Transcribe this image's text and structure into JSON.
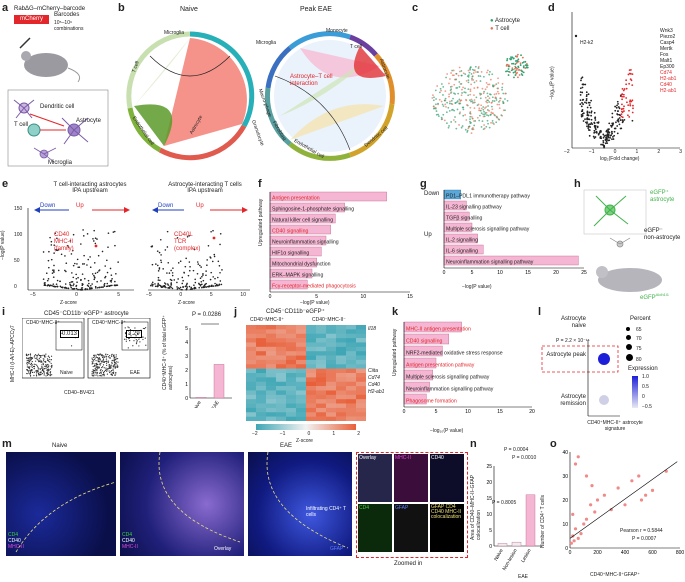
{
  "panels": {
    "a": {
      "label": "a",
      "construct": "RabΔG–mCherry–barcode",
      "mcherry": "mCherry",
      "barcodes": "Barcodes",
      "combos": "10⁵–10⁶",
      "combos2": "combinations",
      "cells": [
        "Dendritic cell",
        "T cell",
        "Astrocyte",
        "Microglia"
      ]
    },
    "b": {
      "label": "b",
      "naive": "Naive",
      "peak": "Peak EAE",
      "naive_segments": [
        "Microglia",
        "T cell",
        "Endothelial cell",
        "Astrocyte"
      ],
      "peak_segments": [
        "Microglia",
        "Monocyte",
        "T cell",
        "Astrocyte",
        "Dendritic cell",
        "Endothelial cell",
        "Fibroblast",
        "Macro-phage",
        "Granulocyte"
      ],
      "interaction": "Astrocyte–T cell interaction"
    },
    "c": {
      "label": "c",
      "legend": [
        "Astrocyte",
        "T cell"
      ]
    },
    "d": {
      "label": "d",
      "xlabel": "log₂(Fold change)",
      "ylabel": "−log₁₀(P value)",
      "genes_black": [
        "H2-k2",
        "Wnk3",
        "Piezo2",
        "Casp4",
        "Mertk",
        "Fos",
        "Malt1",
        "Ep300"
      ],
      "genes_red": [
        "Cd74",
        "H2-ab1",
        "Cd40",
        "H2-ab1"
      ],
      "xticks": [
        "−2",
        "−1",
        "0",
        "1",
        "2",
        "3"
      ],
      "yticks": [
        "0",
        "2",
        "4",
        "6"
      ]
    },
    "e": {
      "label": "e",
      "title1": "T cell-interacting astrocytes",
      "title2": "Astrocyte-interacting T cells",
      "sub": "IPA upstream",
      "down": "Down",
      "up": "Up",
      "xlabel": "Z-score",
      "ylabel": "−log(P value)",
      "left_labels": [
        "CD40",
        "MHC-II",
        "(family)"
      ],
      "right_labels": [
        "CD40L",
        "TCR",
        "(complex)"
      ],
      "xticks_left": [
        "−5",
        "0",
        "5"
      ],
      "xticks_right": [
        "−5",
        "0",
        "5",
        "10"
      ],
      "yticks": [
        "0",
        "50",
        "100",
        "150"
      ]
    },
    "f": {
      "label": "f",
      "ylabel": "Upregulated pathway",
      "xlabel": "−log(P value)",
      "items": [
        {
          "text": "Antigen presentation",
          "red": true,
          "value": 12.5
        },
        {
          "text": "Sphingosine-1-phosphate signalling",
          "red": false,
          "value": 8
        },
        {
          "text": "Natural killer cell signalling",
          "red": false,
          "value": 7
        },
        {
          "text": "CD40 signalling",
          "red": true,
          "value": 6.5
        },
        {
          "text": "Neuroinflammation signalling",
          "red": false,
          "value": 6
        },
        {
          "text": "HIF1α signalling",
          "red": false,
          "value": 5.5
        },
        {
          "text": "Mitochondrial dysfunction",
          "red": false,
          "value": 5
        },
        {
          "text": "ERK–MAPK signalling",
          "red": false,
          "value": 4.5
        },
        {
          "text": "Fcγ-receptor-mediated phagocytosis",
          "red": true,
          "value": 4
        }
      ],
      "xticks": [
        "0",
        "5",
        "10",
        "15"
      ]
    },
    "g": {
      "label": "g",
      "down": "Down",
      "up": "Up",
      "xlabel": "−log(P value)",
      "items": [
        {
          "text": "PD1–PDL1 immunotherapy pathway",
          "down": true,
          "value": 3
        },
        {
          "text": "IL-23 signalling pathway",
          "down": false,
          "value": 4
        },
        {
          "text": "TGFβ signalling",
          "down": false,
          "value": 4.5
        },
        {
          "text": "Multiple sclerosis signalling pathway",
          "down": false,
          "value": 5
        },
        {
          "text": "IL-2 signalling",
          "down": false,
          "value": 6
        },
        {
          "text": "IL-6 signalling",
          "down": false,
          "value": 7
        },
        {
          "text": "Neuroinflammation signalling pathway",
          "down": false,
          "value": 24
        }
      ],
      "xticks": [
        "0",
        "5",
        "10",
        "15",
        "20",
        "25"
      ]
    },
    "h": {
      "label": "h",
      "pos": "eGFP⁺",
      "pos2": "astrocyte",
      "neg": "eGFP⁻",
      "neg2": "non-astrocyte",
      "mouse": "eGFP",
      "mouse_sup": "Aldh1l1"
    },
    "i": {
      "label": "i",
      "title": "CD45⁻CD11b⁻eGFP⁺ astrocyte",
      "box": "CD40⁺MHC-II⁺",
      "naive_val": "0.013",
      "eae_val": "3.29",
      "naive": "Naive",
      "eae": "EAE",
      "xlabel": "CD40–BV421",
      "ylabel": "MHC-II (I-A/I-E)–APCCy7",
      "pval": "P = 0.0286",
      "bar_ylabel": "CD40⁺MHC-II⁺ (% of total eGFP⁺ astrocytes)",
      "bar_values": [
        0.05,
        2.4
      ],
      "bar_yticks": [
        "0",
        "1",
        "2",
        "3",
        "4",
        "5"
      ],
      "bar_cats": [
        "Naive",
        "EAE"
      ]
    },
    "j": {
      "label": "j",
      "title": "CD45⁻CD11b⁻eGFP⁺",
      "col1": "CD40⁺MHC-II⁺",
      "col2": "CD40⁻MHC-II⁻",
      "genes": [
        "Il18",
        "Ciita",
        "Cd74",
        "Cd40",
        "H2-ab1"
      ],
      "xlabel": "Z-score",
      "xticks": [
        "−2",
        "−1",
        "0",
        "1",
        "2"
      ]
    },
    "k": {
      "label": "k",
      "ylabel": "Upregulated pathway",
      "xlabel": "−log₁₀(P value)",
      "items": [
        {
          "text": "MHC-II antigen presentation",
          "red": true,
          "value": 9
        },
        {
          "text": "CD40 signalling",
          "red": true,
          "value": 7
        },
        {
          "text": "NRF2-mediated oxidative stress response",
          "red": false,
          "value": 6
        },
        {
          "text": "Antigen presentation pathway",
          "red": true,
          "value": 5
        },
        {
          "text": "Multiple sclerosis signalling pathway",
          "red": false,
          "value": 4.5
        },
        {
          "text": "Neuroinflammation signalling pathway",
          "red": false,
          "value": 4
        },
        {
          "text": "Phagosome formation",
          "red": true,
          "value": 3.5
        }
      ],
      "xticks": [
        "0",
        "5",
        "10",
        "15",
        "20"
      ]
    },
    "l": {
      "label": "l",
      "rows": [
        "Astrocyte naive",
        "Astrocyte peak",
        "Astrocyte remission"
      ],
      "pval": "P = 2.2 × 10⁻¹⁶",
      "xlabel": "CD40⁺MHC-II⁺ astrocyte signature",
      "percent": "Percent",
      "pct_vals": [
        "65",
        "70",
        "75",
        "80"
      ],
      "expression": "Expression",
      "exp_ticks": [
        "1.0",
        "0.5",
        "0",
        "−0.5"
      ]
    },
    "m": {
      "label": "m",
      "naive": "Naive",
      "eae": "EAE",
      "leg_naive": [
        "CD4",
        "CD40",
        "MHC-II"
      ],
      "leg_eae": [
        "CD4",
        "CD40",
        "MHC-II"
      ],
      "overlay": "Overlay",
      "gfap": "GFAP",
      "infiltrating": "Infiltrating CD4⁺ T cells",
      "zoom": "Zoomed in",
      "tiles": [
        "Overlay",
        "MHC-II",
        "CD40",
        "CD4",
        "GFAP",
        "GFAP CD4 CD40 MHC-II colocalization"
      ]
    },
    "n": {
      "label": "n",
      "ylabel": "Area of CD40–MHC-II–GFAP colocalization",
      "p1": "P = 0.0004",
      "p2": "P = 0.0010",
      "p3": "P = 0.8005",
      "cats": [
        "Naive",
        "Non-lesion",
        "Lesion"
      ],
      "group": "EAE",
      "values": [
        0.8,
        1.2,
        16
      ],
      "yticks": [
        "0",
        "5",
        "10",
        "15",
        "20",
        "25"
      ]
    },
    "o": {
      "label": "o",
      "xlabel": "CD40⁺MHC-II⁺GFAP⁺",
      "ylabel": "Number of CD4⁺ T cells",
      "pearson": "Pearson r = 0.5844",
      "pval": "P = 0.0007",
      "xticks": [
        "0",
        "200",
        "400",
        "600",
        "800"
      ],
      "yticks": [
        "0",
        "10",
        "20",
        "30",
        "40"
      ]
    }
  },
  "chart_data": [
    {
      "type": "bar",
      "title": "",
      "categories": [
        "Antigen presentation",
        "Sphingosine-1-phosphate signalling",
        "Natural killer cell signalling",
        "CD40 signalling",
        "Neuroinflammation signalling",
        "HIF1α signalling",
        "Mitochondrial dysfunction",
        "ERK–MAPK signalling",
        "Fcγ-receptor-mediated phagocytosis"
      ],
      "values": [
        12.5,
        8,
        7,
        6.5,
        6,
        5.5,
        5,
        4.5,
        4
      ],
      "xlabel": "−log(P value)",
      "ylabel": "Upregulated pathway"
    },
    {
      "type": "bar",
      "title": "",
      "categories": [
        "PD1–PDL1 immunotherapy pathway",
        "IL-23 signalling pathway",
        "TGFβ signalling",
        "Multiple sclerosis signalling pathway",
        "IL-2 signalling",
        "IL-6 signalling",
        "Neuroinflammation signalling pathway"
      ],
      "values": [
        3,
        4,
        4.5,
        5,
        6,
        7,
        24
      ],
      "xlabel": "−log(P value)",
      "ylabel": ""
    },
    {
      "type": "bar",
      "title": "",
      "categories": [
        "MHC-II antigen presentation",
        "CD40 signalling",
        "NRF2-mediated oxidative stress response",
        "Antigen presentation pathway",
        "Multiple sclerosis signalling pathway",
        "Neuroinflammation signalling pathway",
        "Phagosome formation"
      ],
      "values": [
        9,
        7,
        6,
        5,
        4.5,
        4,
        3.5
      ],
      "xlabel": "−log₁₀(P value)",
      "ylabel": "Upregulated pathway"
    },
    {
      "type": "bar",
      "title": "",
      "categories": [
        "Naive",
        "EAE"
      ],
      "values": [
        0.05,
        2.4
      ],
      "xlabel": "",
      "ylabel": "CD40⁺MHC-II⁺ (% of total eGFP⁺ astrocytes)",
      "ylim": [
        0,
        5
      ]
    },
    {
      "type": "bar",
      "title": "",
      "categories": [
        "Naive",
        "Non-lesion",
        "Lesion"
      ],
      "values": [
        0.8,
        1.2,
        16
      ],
      "xlabel": "",
      "ylabel": "Area of CD40–MHC-II–GFAP colocalization",
      "ylim": [
        0,
        25
      ]
    },
    {
      "type": "scatter",
      "title": "",
      "xlabel": "CD40⁺MHC-II⁺GFAP⁺",
      "ylabel": "Number of CD4⁺ T cells",
      "xlim": [
        0,
        800
      ],
      "ylim": [
        0,
        40
      ],
      "x": [
        10,
        20,
        30,
        40,
        60,
        80,
        100,
        120,
        150,
        180,
        200,
        250,
        300,
        350,
        400,
        450,
        500,
        550,
        600,
        20,
        40,
        60,
        120,
        160,
        520,
        700
      ],
      "y": [
        2,
        5,
        3,
        8,
        4,
        6,
        10,
        12,
        18,
        15,
        20,
        22,
        16,
        25,
        18,
        28,
        30,
        22,
        24,
        14,
        35,
        38,
        30,
        26,
        20,
        32
      ]
    }
  ]
}
